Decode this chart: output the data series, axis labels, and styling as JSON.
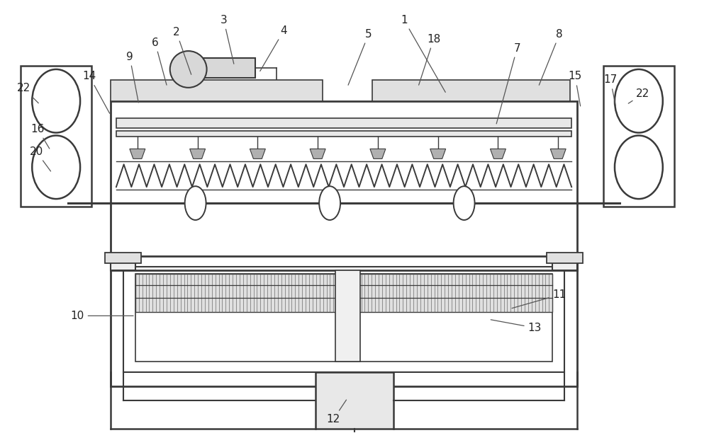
{
  "bg_color": "#ffffff",
  "line_color": "#3a3a3a",
  "lw": 1.4,
  "fig_width": 10.0,
  "fig_height": 6.12
}
